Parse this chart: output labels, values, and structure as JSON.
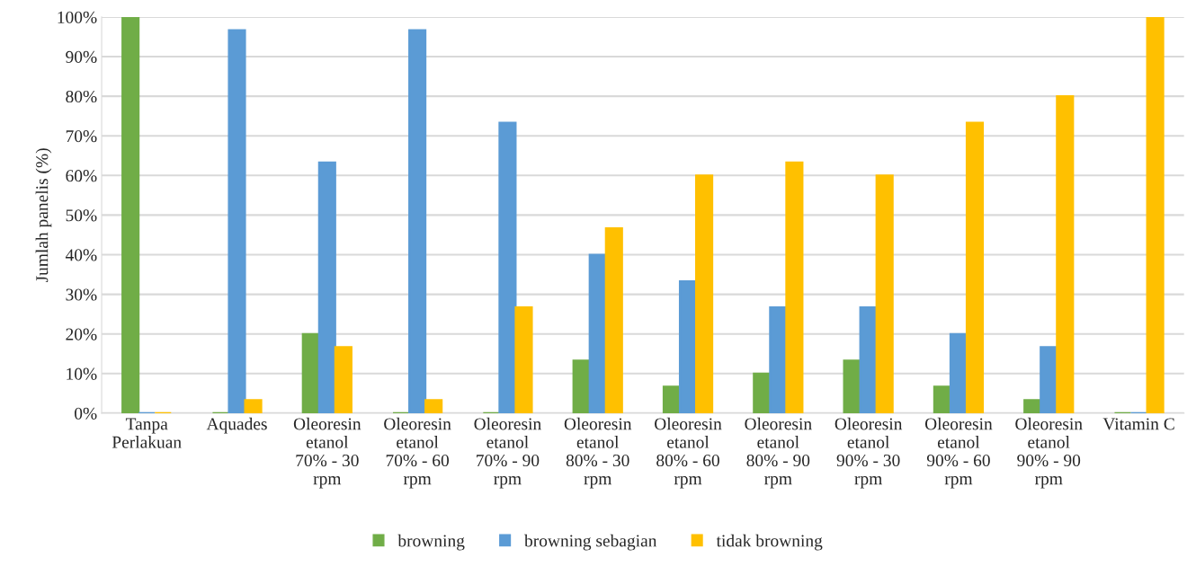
{
  "chart_data": {
    "type": "bar",
    "ylabel": "Jumlah panelis (%)",
    "categories": [
      "Tanpa\nPerlakuan",
      "Aquades",
      "Oleoresin\netanol\n70% - 30\nrpm",
      "Oleoresin\netanol\n70% - 60\nrpm",
      "Oleoresin\netanol\n70% - 90\nrpm",
      "Oleoresin\netanol\n80% - 30\nrpm",
      "Oleoresin\netanol\n80% - 60\nrpm",
      "Oleoresin\netanol\n80% - 90\nrpm",
      "Oleoresin\netanol\n90% - 30\nrpm",
      "Oleoresin\netanol\n90% - 60\nrpm",
      "Oleoresin\netanol\n90% - 90\nrpm",
      "Vitamin C"
    ],
    "series": [
      {
        "name": "browning",
        "color": "#70ad47",
        "values": [
          100,
          0,
          20,
          0,
          0,
          13.3,
          6.7,
          10,
          13.3,
          6.7,
          3.3,
          0
        ]
      },
      {
        "name": "browning sebagian",
        "color": "#5b9bd5",
        "values": [
          0,
          96.7,
          63.3,
          96.7,
          73.3,
          40,
          33.3,
          26.7,
          26.7,
          20,
          16.7,
          0
        ]
      },
      {
        "name": "tidak browning",
        "color": "#ffc000",
        "values": [
          0,
          3.3,
          16.7,
          3.3,
          26.7,
          46.7,
          60,
          63.3,
          60,
          73.3,
          80,
          100
        ]
      }
    ],
    "ylim": [
      0,
      100
    ],
    "yticks": [
      {
        "value": 0,
        "label": "0%"
      },
      {
        "value": 10,
        "label": "10%"
      },
      {
        "value": 20,
        "label": "20%"
      },
      {
        "value": 30,
        "label": "30%"
      },
      {
        "value": 40,
        "label": "40%"
      },
      {
        "value": 50,
        "label": "50%"
      },
      {
        "value": 60,
        "label": "60%"
      },
      {
        "value": 70,
        "label": "70%"
      },
      {
        "value": 80,
        "label": "80%"
      },
      {
        "value": 90,
        "label": "90%"
      },
      {
        "value": 100,
        "label": "100%"
      }
    ],
    "grid": "y",
    "legend": "bottom"
  }
}
